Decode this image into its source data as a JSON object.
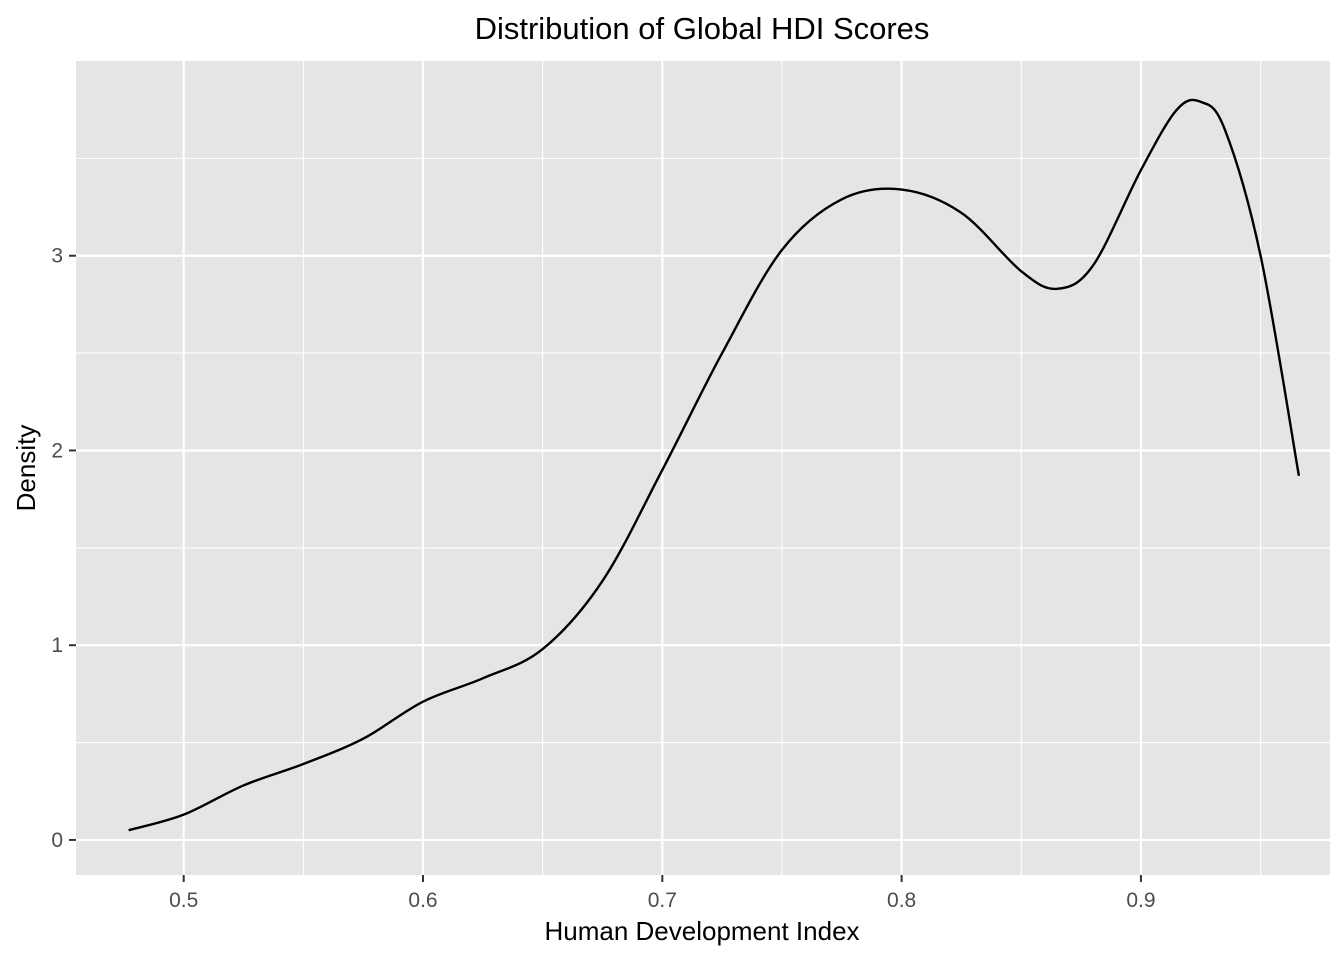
{
  "chart_data": {
    "type": "line",
    "title": "Distribution of Global HDI Scores",
    "xlabel": "Human Development Index",
    "ylabel": "Density",
    "xlim": [
      0.455,
      0.979
    ],
    "ylim": [
      -0.18,
      4.0
    ],
    "x_ticks": [
      0.5,
      0.6,
      0.7,
      0.8,
      0.9
    ],
    "x_tick_labels": [
      "0.5",
      "0.6",
      "0.7",
      "0.8",
      "0.9"
    ],
    "y_ticks": [
      0,
      1,
      2,
      3
    ],
    "y_tick_labels": [
      "0",
      "1",
      "2",
      "3"
    ],
    "grid": true,
    "legend": "none",
    "colors": {
      "panel": "#e5e5e5",
      "grid": "#ffffff",
      "line": "#000000",
      "tick_text": "#4d4d4d"
    },
    "series": [
      {
        "x": [
          0.477,
          0.5,
          0.525,
          0.55,
          0.575,
          0.6,
          0.625,
          0.65,
          0.675,
          0.7,
          0.725,
          0.75,
          0.775,
          0.8,
          0.825,
          0.85,
          0.865,
          0.88,
          0.9,
          0.915,
          0.925,
          0.935,
          0.95,
          0.966
        ],
        "values": [
          0.05,
          0.13,
          0.28,
          0.39,
          0.52,
          0.71,
          0.83,
          0.98,
          1.33,
          1.9,
          2.5,
          3.03,
          3.29,
          3.34,
          3.22,
          2.92,
          2.83,
          2.95,
          3.44,
          3.75,
          3.79,
          3.65,
          3.0,
          1.87
        ]
      }
    ]
  }
}
